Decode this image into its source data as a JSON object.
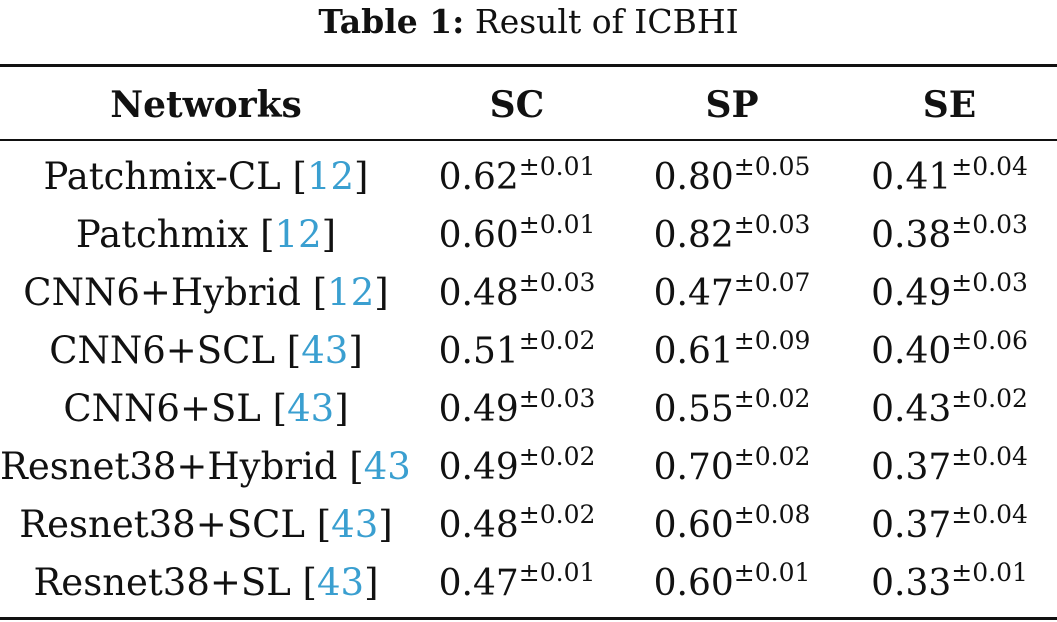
{
  "caption": {
    "label": "Table 1:",
    "text": "Result of ICBHI"
  },
  "columns": [
    "Networks",
    "SC",
    "SP",
    "SE"
  ],
  "rows": [
    {
      "network": "Patchmix-CL",
      "ref": "12",
      "sc": "0.62",
      "sc_pm": "±0.01",
      "sp": "0.80",
      "sp_pm": "±0.05",
      "se": "0.41",
      "se_pm": "±0.04"
    },
    {
      "network": "Patchmix",
      "ref": "12",
      "sc": "0.60",
      "sc_pm": "±0.01",
      "sp": "0.82",
      "sp_pm": "±0.03",
      "se": "0.38",
      "se_pm": "±0.03"
    },
    {
      "network": "CNN6+Hybrid",
      "ref": "12",
      "sc": "0.48",
      "sc_pm": "±0.03",
      "sp": "0.47",
      "sp_pm": "±0.07",
      "se": "0.49",
      "se_pm": "±0.03"
    },
    {
      "network": "CNN6+SCL",
      "ref": "43",
      "sc": "0.51",
      "sc_pm": "±0.02",
      "sp": "0.61",
      "sp_pm": "±0.09",
      "se": "0.40",
      "se_pm": "±0.06"
    },
    {
      "network": "CNN6+SL",
      "ref": "43",
      "sc": "0.49",
      "sc_pm": "±0.03",
      "sp": "0.55",
      "sp_pm": "±0.02",
      "se": "0.43",
      "se_pm": "±0.02"
    },
    {
      "network": "Resnet38+Hybrid",
      "ref": "43",
      "sc": "0.49",
      "sc_pm": "±0.02",
      "sp": "0.70",
      "sp_pm": "±0.02",
      "se": "0.37",
      "se_pm": "±0.04"
    },
    {
      "network": "Resnet38+SCL",
      "ref": "43",
      "sc": "0.48",
      "sc_pm": "±0.02",
      "sp": "0.60",
      "sp_pm": "±0.08",
      "se": "0.37",
      "se_pm": "±0.04"
    },
    {
      "network": "Resnet38+SL",
      "ref": "43",
      "sc": "0.47",
      "sc_pm": "±0.01",
      "sp": "0.60",
      "sp_pm": "±0.01",
      "se": "0.33",
      "se_pm": "±0.01"
    }
  ],
  "colors": {
    "citation": "#3a9fd0",
    "text": "#111111"
  }
}
